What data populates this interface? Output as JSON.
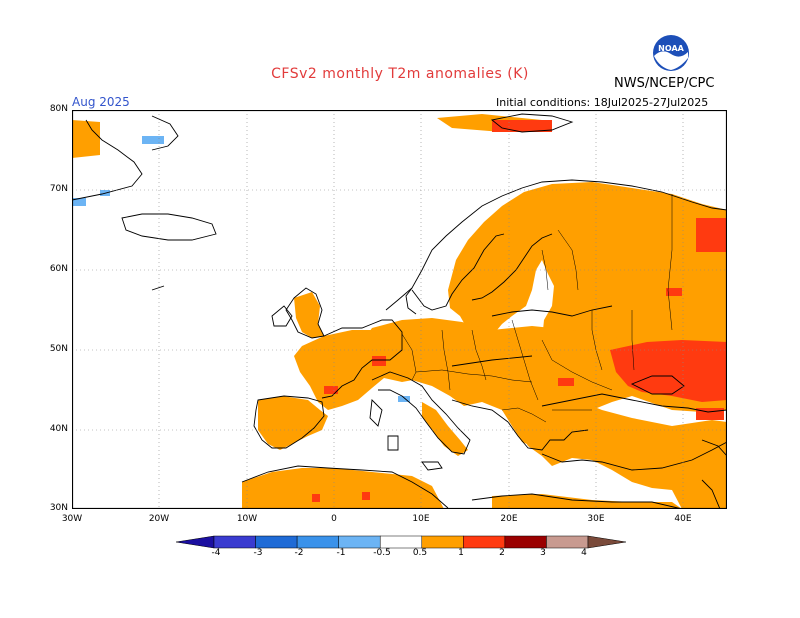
{
  "title": "CFSv2 monthly T2m anomalies (K)",
  "agency": "NWS/NCEP/CPC",
  "logo_text": "NOAA",
  "month": "Aug 2025",
  "initial_conditions": "Initial conditions: 18Jul2025-27Jul2025",
  "lat_labels": [
    "80N",
    "70N",
    "60N",
    "50N",
    "40N",
    "30N"
  ],
  "lon_labels": [
    "30W",
    "20W",
    "10W",
    "0",
    "10E",
    "20E",
    "30E",
    "40E"
  ],
  "colorbar": {
    "labels": [
      "-4",
      "-3",
      "-2",
      "-1",
      "-0.5",
      "0.5",
      "1",
      "2",
      "3",
      "4"
    ],
    "colors": [
      "#1b0fa0",
      "#3a3bd0",
      "#1f6bd6",
      "#3a92ea",
      "#6cb4f4",
      "#ffffff",
      "#ff9f00",
      "#ff3a10",
      "#9a0000",
      "#c89a90",
      "#7a4a3a"
    ]
  },
  "anomaly_colors": {
    "gt_0_5": "#ff9f00",
    "gt_1": "#ff3a10",
    "gt_2": "#9a0000",
    "lt_neg_0_5": "#6cb4f4"
  },
  "map_extent": {
    "lon": [
      -30,
      45
    ],
    "lat": [
      30,
      80
    ]
  }
}
